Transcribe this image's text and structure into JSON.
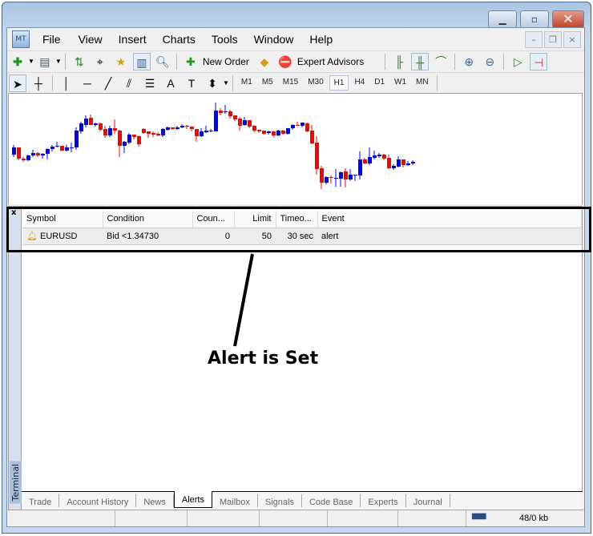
{
  "window": {
    "minimize": "▁",
    "maximize": "▫",
    "close": "✕"
  },
  "menu": [
    "File",
    "View",
    "Insert",
    "Charts",
    "Tools",
    "Window",
    "Help"
  ],
  "mdi": {
    "minimize": "–",
    "restore": "❐",
    "close": "×"
  },
  "toolbar1": {
    "new_order": "New Order",
    "expert_advisors": "Expert Advisors"
  },
  "timeframes": [
    "M1",
    "M5",
    "M15",
    "M30",
    "H1",
    "H4",
    "D1",
    "W1",
    "MN"
  ],
  "active_timeframe": "H1",
  "colors": {
    "bull": "#0000ff",
    "bear": "#ff0000",
    "highlight_box": "#000000"
  },
  "chart_data": {
    "type": "candlestick",
    "bull_color": "#0000ff",
    "bear_color": "#ff0000",
    "candles": [
      [
        48,
        57,
        60,
        45
      ],
      [
        57,
        43,
        57,
        41
      ],
      [
        43,
        41,
        45,
        39
      ],
      [
        41,
        47,
        48,
        40
      ],
      [
        47,
        50,
        54,
        45
      ],
      [
        50,
        47,
        51,
        45
      ],
      [
        47,
        49,
        50,
        43
      ],
      [
        49,
        55,
        56,
        42
      ],
      [
        55,
        58,
        60,
        52
      ],
      [
        58,
        59,
        64,
        57
      ],
      [
        59,
        53,
        59,
        52
      ],
      [
        53,
        57,
        60,
        52
      ],
      [
        57,
        57,
        63,
        51
      ],
      [
        57,
        78,
        82,
        54
      ],
      [
        77,
        87,
        89,
        74
      ],
      [
        85,
        93,
        97,
        82
      ],
      [
        94,
        85,
        98,
        85
      ],
      [
        85,
        87,
        88,
        83
      ],
      [
        87,
        79,
        88,
        77
      ],
      [
        80,
        72,
        84,
        69
      ],
      [
        72,
        81,
        84,
        70
      ],
      [
        81,
        78,
        92,
        74
      ],
      [
        78,
        59,
        79,
        45
      ],
      [
        59,
        64,
        65,
        50
      ],
      [
        63,
        73,
        75,
        61
      ],
      [
        73,
        70,
        73,
        67
      ],
      [
        71,
        61,
        72,
        58
      ],
      [
        80,
        75,
        81,
        74
      ],
      [
        77,
        74,
        77,
        69
      ],
      [
        75,
        73,
        77,
        70
      ],
      [
        74,
        72,
        76,
        71
      ],
      [
        72,
        80,
        81,
        70
      ],
      [
        79,
        82,
        83,
        78
      ],
      [
        82,
        80,
        82,
        79
      ],
      [
        80,
        82,
        84,
        79
      ],
      [
        82,
        84,
        86,
        81
      ],
      [
        84,
        83,
        85,
        80
      ],
      [
        83,
        80,
        83,
        77
      ],
      [
        80,
        71,
        80,
        64
      ],
      [
        71,
        77,
        81,
        70
      ],
      [
        76,
        78,
        84,
        75
      ],
      [
        77,
        78,
        80,
        76
      ],
      [
        77,
        103,
        113,
        77
      ],
      [
        103,
        100,
        106,
        97
      ],
      [
        101,
        102,
        110,
        99
      ],
      [
        102,
        96,
        104,
        93
      ],
      [
        97,
        92,
        97,
        90
      ],
      [
        93,
        84,
        95,
        78
      ],
      [
        85,
        91,
        95,
        84
      ],
      [
        91,
        83,
        91,
        81
      ],
      [
        84,
        78,
        85,
        76
      ],
      [
        79,
        77,
        79,
        75
      ],
      [
        78,
        74,
        78,
        73
      ],
      [
        75,
        77,
        78,
        73
      ],
      [
        77,
        72,
        78,
        70
      ],
      [
        72,
        78,
        79,
        71
      ],
      [
        78,
        74,
        79,
        73
      ],
      [
        74,
        81,
        81,
        73
      ],
      [
        81,
        85,
        86,
        79
      ],
      [
        85,
        84,
        89,
        84
      ],
      [
        84,
        88,
        88,
        82
      ],
      [
        87,
        77,
        88,
        76
      ],
      [
        78,
        62,
        85,
        61
      ],
      [
        63,
        30,
        71,
        23
      ],
      [
        31,
        13,
        34,
        5
      ],
      [
        13,
        20,
        21,
        11
      ],
      [
        20,
        19,
        22,
        12
      ],
      [
        19,
        19,
        30,
        8
      ],
      [
        18,
        26,
        27,
        8
      ],
      [
        27,
        17,
        31,
        7
      ],
      [
        17,
        23,
        30,
        15
      ],
      [
        22,
        23,
        23,
        15
      ],
      [
        22,
        42,
        52,
        17
      ],
      [
        42,
        37,
        44,
        36
      ],
      [
        37,
        45,
        57,
        35
      ],
      [
        44,
        47,
        53,
        42
      ],
      [
        46,
        48,
        50,
        44
      ],
      [
        48,
        43,
        49,
        41
      ],
      [
        44,
        31,
        48,
        30
      ],
      [
        31,
        34,
        36,
        29
      ],
      [
        33,
        42,
        46,
        32
      ],
      [
        42,
        35,
        42,
        32
      ],
      [
        35,
        37,
        40,
        34
      ],
      [
        37,
        39,
        41,
        35
      ]
    ]
  },
  "alerts": {
    "columns": [
      "Symbol",
      "Condition",
      "Coun...",
      "Limit",
      "Timeo...",
      "Event"
    ],
    "rows": [
      {
        "symbol": "EURUSD",
        "condition": "Bid <1.34730",
        "counter": "0",
        "limit": "50",
        "timeout": "30 sec",
        "event": "alert"
      }
    ]
  },
  "terminal": {
    "close": "x",
    "label": "Terminal"
  },
  "tabs": [
    "Trade",
    "Account History",
    "News",
    "Alerts",
    "Mailbox",
    "Signals",
    "Code Base",
    "Experts",
    "Journal"
  ],
  "active_tab": "Alerts",
  "status": {
    "traffic": "48/0 kb"
  },
  "annotation": "Alert is Set"
}
